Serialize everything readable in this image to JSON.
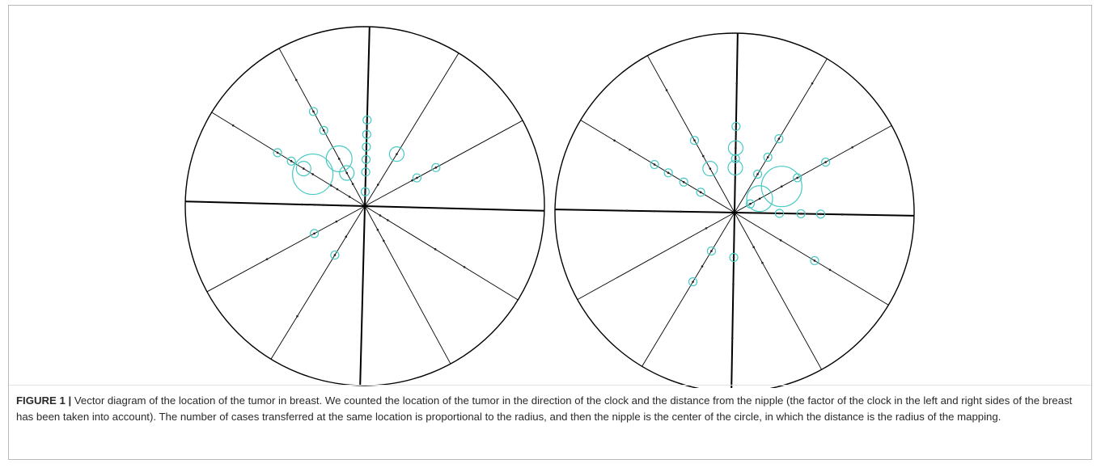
{
  "figure": {
    "label": "FIGURE 1 |",
    "caption": " Vector diagram of the location of the tumor in breast. We counted the location of the tumor in the direction of the clock and the distance from the nipple (the factor of the clock in the left and right sides of the breast has been taken into account). The number of cases transferred at the same location is proportional to the radius, and then the nipple is the center of the circle, in which the distance is the radius of the mapping."
  },
  "colors": {
    "circle_outline": "#000000",
    "spoke": "#000000",
    "case_ring": "#48c9c3",
    "case_dot": "#222222"
  },
  "diagrams": [
    {
      "name": "left-breast-diagram",
      "spoke_angles_deg": [
        90,
        60,
        30,
        0,
        -30,
        -60,
        -90,
        -120,
        -150,
        180,
        150,
        120
      ],
      "thick_spoke_angles_deg": [
        90,
        -90,
        180,
        0
      ],
      "cases": [
        {
          "angle": 90,
          "r": 0.48,
          "size": 1
        },
        {
          "angle": 90,
          "r": 0.4,
          "size": 1
        },
        {
          "angle": 90,
          "r": 0.33,
          "size": 1
        },
        {
          "angle": 90,
          "r": 0.26,
          "size": 1
        },
        {
          "angle": 90,
          "r": 0.19,
          "size": 1
        },
        {
          "angle": 90,
          "r": 0.08,
          "size": 1
        },
        {
          "angle": 60,
          "r": 0.34,
          "size": 2
        },
        {
          "angle": 60,
          "r": 0.14,
          "size": 0
        },
        {
          "angle": 30,
          "r": 0.45,
          "size": 1
        },
        {
          "angle": 30,
          "r": 0.33,
          "size": 1
        },
        {
          "angle": 30,
          "r": 0.3,
          "size": 0
        },
        {
          "angle": 120,
          "r": 0.6,
          "size": 1
        },
        {
          "angle": 120,
          "r": 0.48,
          "size": 1
        },
        {
          "angle": 120,
          "r": 0.3,
          "size": 3
        },
        {
          "angle": 120,
          "r": 0.21,
          "size": 2
        },
        {
          "angle": 120,
          "r": 0.14,
          "size": 0
        },
        {
          "angle": 120,
          "r": 0.8,
          "size": 0
        },
        {
          "angle": 150,
          "r": 0.57,
          "size": 1
        },
        {
          "angle": 150,
          "r": 0.48,
          "size": 1
        },
        {
          "angle": 150,
          "r": 0.4,
          "size": 2
        },
        {
          "angle": 150,
          "r": 0.34,
          "size": 4
        },
        {
          "angle": 150,
          "r": 0.22,
          "size": 0
        },
        {
          "angle": 150,
          "r": 0.18,
          "size": 0
        },
        {
          "angle": 150,
          "r": 0.1,
          "size": 0
        },
        {
          "angle": 150,
          "r": 0.86,
          "size": 0
        },
        {
          "angle": 180,
          "r": 0.35,
          "size": 0
        },
        {
          "angle": 180,
          "r": 0.28,
          "size": 0
        },
        {
          "angle": 180,
          "r": 0.23,
          "size": 0
        },
        {
          "angle": 180,
          "r": 0.13,
          "size": 0
        },
        {
          "angle": -150,
          "r": 0.32,
          "size": 1
        },
        {
          "angle": -150,
          "r": 0.18,
          "size": 0
        },
        {
          "angle": -150,
          "r": 0.62,
          "size": 0
        },
        {
          "angle": -120,
          "r": 0.32,
          "size": 1
        },
        {
          "angle": -120,
          "r": 0.2,
          "size": 0
        },
        {
          "angle": -120,
          "r": 0.72,
          "size": 0
        },
        {
          "angle": -60,
          "r": 0.22,
          "size": 0
        },
        {
          "angle": -60,
          "r": 0.15,
          "size": 0
        },
        {
          "angle": -30,
          "r": 0.1,
          "size": 0
        },
        {
          "angle": -30,
          "r": 0.15,
          "size": 0
        },
        {
          "angle": -30,
          "r": 0.46,
          "size": 0
        },
        {
          "angle": -30,
          "r": 0.65,
          "size": 0
        }
      ]
    },
    {
      "name": "right-breast-diagram",
      "spoke_angles_deg": [
        90,
        60,
        30,
        0,
        -30,
        -60,
        -90,
        -120,
        -150,
        180,
        150,
        120
      ],
      "thick_spoke_angles_deg": [
        90,
        -90,
        180,
        0
      ],
      "cases": [
        {
          "angle": 90,
          "r": 0.72,
          "size": 0
        },
        {
          "angle": 90,
          "r": 0.48,
          "size": 1
        },
        {
          "angle": 90,
          "r": 0.36,
          "size": 2
        },
        {
          "angle": 90,
          "r": 0.3,
          "size": 1
        },
        {
          "angle": 90,
          "r": 0.25,
          "size": 2
        },
        {
          "angle": 60,
          "r": 0.48,
          "size": 1
        },
        {
          "angle": 60,
          "r": 0.36,
          "size": 1
        },
        {
          "angle": 60,
          "r": 0.25,
          "size": 1
        },
        {
          "angle": 60,
          "r": 0.84,
          "size": 0
        },
        {
          "angle": 30,
          "r": 0.58,
          "size": 1
        },
        {
          "angle": 30,
          "r": 0.4,
          "size": 1
        },
        {
          "angle": 30,
          "r": 0.3,
          "size": 4
        },
        {
          "angle": 30,
          "r": 0.16,
          "size": 3
        },
        {
          "angle": 30,
          "r": 0.1,
          "size": 1
        },
        {
          "angle": 30,
          "r": 0.75,
          "size": 0
        },
        {
          "angle": 120,
          "r": 0.46,
          "size": 1
        },
        {
          "angle": 120,
          "r": 0.36,
          "size": 0
        },
        {
          "angle": 120,
          "r": 0.28,
          "size": 2
        },
        {
          "angle": 120,
          "r": 0.78,
          "size": 0
        },
        {
          "angle": 150,
          "r": 0.52,
          "size": 1
        },
        {
          "angle": 150,
          "r": 0.43,
          "size": 1
        },
        {
          "angle": 150,
          "r": 0.33,
          "size": 1
        },
        {
          "angle": 150,
          "r": 0.22,
          "size": 1
        },
        {
          "angle": 150,
          "r": 0.68,
          "size": 0
        },
        {
          "angle": 150,
          "r": 0.78,
          "size": 0
        },
        {
          "angle": 180,
          "r": 0.3,
          "size": 0
        },
        {
          "angle": 180,
          "r": 0.45,
          "size": 0
        },
        {
          "angle": 180,
          "r": 0.6,
          "size": 0
        },
        {
          "angle": 0,
          "r": 0.25,
          "size": 1
        },
        {
          "angle": 0,
          "r": 0.37,
          "size": 1
        },
        {
          "angle": 0,
          "r": 0.48,
          "size": 1
        },
        {
          "angle": 0,
          "r": 0.6,
          "size": 0
        },
        {
          "angle": -60,
          "r": 0.22,
          "size": 0
        },
        {
          "angle": -60,
          "r": 0.32,
          "size": 0
        },
        {
          "angle": -30,
          "r": 0.52,
          "size": 1
        },
        {
          "angle": -30,
          "r": 0.62,
          "size": 0
        },
        {
          "angle": -30,
          "r": 0.3,
          "size": 0
        },
        {
          "angle": -90,
          "r": 0.25,
          "size": 1
        },
        {
          "angle": -90,
          "r": 0.4,
          "size": 0
        },
        {
          "angle": -90,
          "r": 0.7,
          "size": 0
        },
        {
          "angle": -120,
          "r": 0.25,
          "size": 1
        },
        {
          "angle": -120,
          "r": 0.45,
          "size": 1
        },
        {
          "angle": -120,
          "r": 0.35,
          "size": 0
        },
        {
          "angle": -150,
          "r": 0.18,
          "size": 0
        }
      ]
    }
  ]
}
